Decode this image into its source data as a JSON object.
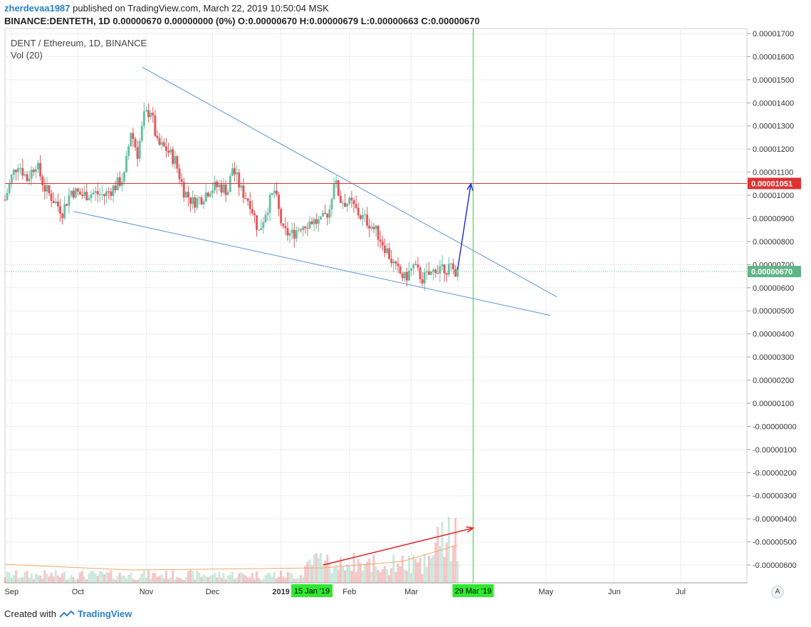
{
  "header": {
    "author": "zherdevaa1987",
    "published_text": "published on TradingView.com, March 22, 2019 10:50:04 MSK",
    "ohlc_line": "BINANCE:DENTETH, 1D  0.00000670 0.00000000 (0%) O:0.00000670 H:0.00000679 L:0.00000663 C:0.00000670"
  },
  "footer": {
    "created_with": "Created with",
    "logo_text": "TradingView"
  },
  "scale_mode": "A",
  "colors": {
    "up": "#6cbfa3",
    "down": "#e05b5f",
    "trendline": "#5b95d9",
    "resistance": "#e03131",
    "vertical_marker": "#3fcf3f",
    "arrow_up": "#2a2fd0",
    "arrow_volume": "#e02020",
    "vol_ma": "#f2a766",
    "current_price_bg": "#5fb686",
    "resistance_label_bg": "#e03131",
    "date_label_bg": "#2fe82f"
  },
  "chart_data": {
    "type": "candlestick",
    "title": "DENT / Ethereum, 1D, BINANCE",
    "indicator": "Vol (20)",
    "y_axis": {
      "ylim": [
        -6.5e-06,
        1.71e-05
      ],
      "ticks": [
        "0.00001700",
        "0.00001600",
        "0.00001500",
        "0.00001400",
        "0.00001300",
        "0.00001200",
        "0.00001100",
        "0.00001000",
        "0.00000900",
        "0.00000800",
        "0.00000700",
        "0.00000600",
        "0.00000500",
        "0.00000400",
        "0.00000300",
        "0.00000200",
        "0.00000100",
        "-0.00000000",
        "-0.00000100",
        "-0.00000200",
        "-0.00000300",
        "-0.00000400",
        "-0.00000500",
        "-0.00000600"
      ],
      "tick_values": [
        1.7e-05,
        1.6e-05,
        1.5e-05,
        1.4e-05,
        1.3e-05,
        1.2e-05,
        1.1e-05,
        1e-05,
        9e-06,
        8e-06,
        7e-06,
        6e-06,
        5e-06,
        4e-06,
        3e-06,
        2e-06,
        1e-06,
        0,
        -1e-06,
        -2e-06,
        -3e-06,
        -4e-06,
        -5e-06,
        -6e-06
      ]
    },
    "x_axis": {
      "start_date": "2018-08-29",
      "end_date": "2019-07-31",
      "labels": [
        {
          "text": "Sep",
          "date": "2018-09-01"
        },
        {
          "text": "Oct",
          "date": "2018-10-01"
        },
        {
          "text": "Nov",
          "date": "2018-11-01"
        },
        {
          "text": "Dec",
          "date": "2018-12-01"
        },
        {
          "text": "2019",
          "date": "2019-01-01",
          "bold": true
        },
        {
          "text": "Feb",
          "date": "2019-02-01"
        },
        {
          "text": "Mar",
          "date": "2019-03-01"
        },
        {
          "text": "May",
          "date": "2019-05-01"
        },
        {
          "text": "Jun",
          "date": "2019-06-01"
        },
        {
          "text": "Jul",
          "date": "2019-07-01"
        }
      ],
      "highlighted_dates": [
        {
          "text": "15 Jan '19",
          "date": "2019-01-15"
        },
        {
          "text": "29 Mar '19",
          "date": "2019-03-29"
        }
      ]
    },
    "price_points": [
      [
        "2018-08-29",
        9.8e-06
      ],
      [
        "2018-09-01",
        1.08e-05
      ],
      [
        "2018-09-04",
        1.14e-05
      ],
      [
        "2018-09-08",
        1.07e-05
      ],
      [
        "2018-09-12",
        1.14e-05
      ],
      [
        "2018-09-16",
        1.03e-05
      ],
      [
        "2018-09-20",
        9.8e-06
      ],
      [
        "2018-09-24",
        9.3e-06
      ],
      [
        "2018-09-28",
        1.02e-05
      ],
      [
        "2018-10-03",
        1e-05
      ],
      [
        "2018-10-08",
        1.01e-05
      ],
      [
        "2018-10-13",
        1e-05
      ],
      [
        "2018-10-18",
        1.04e-05
      ],
      [
        "2018-10-22",
        1.08e-05
      ],
      [
        "2018-10-25",
        1.28e-05
      ],
      [
        "2018-10-28",
        1.18e-05
      ],
      [
        "2018-10-31",
        1.34e-05
      ],
      [
        "2018-11-03",
        1.37e-05
      ],
      [
        "2018-11-06",
        1.22e-05
      ],
      [
        "2018-11-10",
        1.2e-05
      ],
      [
        "2018-11-14",
        1.15e-05
      ],
      [
        "2018-11-18",
        1.02e-05
      ],
      [
        "2018-11-22",
        9.7e-06
      ],
      [
        "2018-11-26",
        9.9e-06
      ],
      [
        "2018-11-30",
        1.03e-05
      ],
      [
        "2018-12-04",
        1.04e-05
      ],
      [
        "2018-12-08",
        1.02e-05
      ],
      [
        "2018-12-10",
        1.12e-05
      ],
      [
        "2018-12-14",
        1.02e-05
      ],
      [
        "2018-12-18",
        9.7e-06
      ],
      [
        "2018-12-22",
        8.4e-06
      ],
      [
        "2018-12-25",
        9.3e-06
      ],
      [
        "2018-12-29",
        1.02e-05
      ],
      [
        "2019-01-02",
        8.4e-06
      ],
      [
        "2019-01-06",
        8.3e-06
      ],
      [
        "2019-01-10",
        8.7e-06
      ],
      [
        "2019-01-15",
        8.9e-06
      ],
      [
        "2019-01-19",
        8.8e-06
      ],
      [
        "2019-01-23",
        9.4e-06
      ],
      [
        "2019-01-25",
        1.07e-05
      ],
      [
        "2019-01-28",
        9.8e-06
      ],
      [
        "2019-02-02",
        9.6e-06
      ],
      [
        "2019-02-06",
        9.1e-06
      ],
      [
        "2019-02-10",
        8.8e-06
      ],
      [
        "2019-02-14",
        8.3e-06
      ],
      [
        "2019-02-18",
        7.6e-06
      ],
      [
        "2019-02-22",
        6.8e-06
      ],
      [
        "2019-02-26",
        6.4e-06
      ],
      [
        "2019-03-02",
        6.9e-06
      ],
      [
        "2019-03-06",
        6.4e-06
      ],
      [
        "2019-03-10",
        6.6e-06
      ],
      [
        "2019-03-14",
        7e-06
      ],
      [
        "2019-03-18",
        6.8e-06
      ],
      [
        "2019-03-22",
        6.7e-06
      ]
    ],
    "annotations": {
      "current_price": {
        "value": 6.7e-06,
        "label": "0.00000670"
      },
      "resistance": {
        "value": 1.051e-05,
        "label": "0.00001051"
      },
      "wedge_upper": [
        [
          "2018-10-30",
          1.555e-05
        ],
        [
          "2019-05-06",
          5.6e-06
        ]
      ],
      "wedge_lower": [
        [
          "2018-09-29",
          9.3e-06
        ],
        [
          "2019-05-03",
          4.8e-06
        ]
      ],
      "projection_arrow": [
        [
          "2019-03-22",
          6.8e-06
        ],
        [
          "2019-03-28",
          1.05e-05
        ]
      ],
      "vertical_line_date": "2019-03-29",
      "volume_arrow": [
        [
          "2019-01-20",
          -6e-06
        ],
        [
          "2019-03-29",
          -4.4e-06
        ]
      ]
    }
  }
}
